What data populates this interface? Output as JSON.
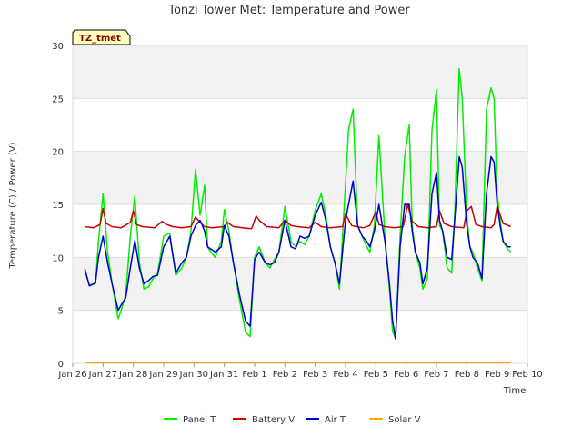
{
  "chart_data": {
    "type": "line",
    "title": "Tonzi Tower Met: Temperature and Power",
    "xlabel": "Time",
    "ylabel": "Temperature (C) / Power (V)",
    "ylim": [
      0,
      30
    ],
    "yticks": [
      0,
      5,
      10,
      15,
      20,
      25,
      30
    ],
    "xlim": [
      0,
      15
    ],
    "xtick_labels": [
      "Jan 26",
      "Jan 27",
      "Jan 28",
      "Jan 29",
      "Jan 30",
      "Jan 31",
      "Feb 1",
      "Feb 2",
      "Feb 3",
      "Feb 4",
      "Feb 5",
      "Feb 6",
      "Feb 7",
      "Feb 8",
      "Feb 9",
      "Feb 10"
    ],
    "badge": "TZ_tmet",
    "legend_position": "bottom-center",
    "series": [
      {
        "name": "Panel T",
        "color": "#00ee00",
        "x": [
          0.4,
          0.55,
          0.75,
          0.85,
          1.0,
          1.15,
          1.3,
          1.5,
          1.6,
          1.75,
          1.9,
          2.05,
          2.2,
          2.35,
          2.5,
          2.65,
          2.8,
          3.0,
          3.2,
          3.4,
          3.6,
          3.75,
          3.9,
          4.05,
          4.2,
          4.35,
          4.45,
          4.55,
          4.7,
          4.9,
          5.0,
          5.15,
          5.3,
          5.5,
          5.7,
          5.85,
          6.0,
          6.15,
          6.35,
          6.5,
          6.65,
          6.8,
          7.0,
          7.2,
          7.35,
          7.5,
          7.65,
          7.8,
          8.0,
          8.2,
          8.35,
          8.5,
          8.65,
          8.8,
          9.0,
          9.1,
          9.25,
          9.4,
          9.55,
          9.7,
          9.8,
          9.95,
          10.1,
          10.3,
          10.45,
          10.55,
          10.65,
          10.8,
          10.95,
          11.1,
          11.2,
          11.3,
          11.45,
          11.55,
          11.7,
          11.85,
          12.0,
          12.1,
          12.2,
          12.35,
          12.5,
          12.6,
          12.75,
          12.85,
          13.0,
          13.1,
          13.2,
          13.35,
          13.5,
          13.65,
          13.8,
          13.9,
          14.0,
          14.1,
          14.2,
          14.35,
          14.45
        ],
        "y": [
          8.8,
          7.4,
          7.5,
          11.5,
          16.0,
          10.5,
          7.5,
          4.2,
          5.0,
          6.5,
          12.0,
          15.8,
          9.5,
          7.0,
          7.2,
          8.0,
          8.5,
          12.0,
          12.3,
          8.3,
          9.0,
          10.0,
          12.5,
          18.3,
          14.0,
          16.8,
          11.0,
          10.5,
          10.0,
          11.5,
          14.5,
          12.5,
          9.5,
          6.0,
          3.0,
          2.5,
          10.0,
          11.0,
          9.5,
          9.0,
          9.8,
          10.5,
          14.8,
          11.5,
          11.0,
          11.5,
          11.2,
          12.0,
          14.5,
          16.0,
          14.0,
          11.0,
          9.5,
          7.0,
          17.0,
          22.0,
          24.0,
          13.0,
          12.0,
          11.0,
          10.5,
          13.0,
          21.5,
          12.0,
          7.0,
          3.0,
          2.3,
          12.0,
          19.5,
          22.5,
          13.0,
          10.5,
          9.0,
          7.0,
          8.0,
          22.0,
          25.8,
          13.0,
          12.5,
          9.0,
          8.5,
          14.0,
          27.8,
          25.0,
          14.0,
          11.0,
          10.5,
          9.0,
          7.8,
          24.0,
          26.0,
          25.0,
          16.0,
          13.5,
          11.5,
          10.8,
          10.5
        ]
      },
      {
        "name": "Battery V",
        "color": "#cc0000",
        "x": [
          0.4,
          0.7,
          0.9,
          1.0,
          1.1,
          1.3,
          1.6,
          1.9,
          2.0,
          2.1,
          2.3,
          2.7,
          2.95,
          3.1,
          3.3,
          3.6,
          3.9,
          4.05,
          4.2,
          4.35,
          4.6,
          5.0,
          5.1,
          5.3,
          5.6,
          5.9,
          6.05,
          6.15,
          6.4,
          6.8,
          7.0,
          7.2,
          7.4,
          7.8,
          8.0,
          8.2,
          8.5,
          8.9,
          9.0,
          9.2,
          9.35,
          9.6,
          9.8,
          10.0,
          10.1,
          10.3,
          10.6,
          10.9,
          11.05,
          11.2,
          11.4,
          11.7,
          12.0,
          12.1,
          12.25,
          12.5,
          12.9,
          13.0,
          13.15,
          13.3,
          13.5,
          13.8,
          13.9,
          14.0,
          14.2,
          14.45
        ],
        "y": [
          12.9,
          12.8,
          13.1,
          14.6,
          13.2,
          12.9,
          12.8,
          13.3,
          14.4,
          13.1,
          12.9,
          12.8,
          13.4,
          13.1,
          12.9,
          12.8,
          12.9,
          13.8,
          13.3,
          12.9,
          12.8,
          12.9,
          13.3,
          12.9,
          12.8,
          12.7,
          13.9,
          13.5,
          12.9,
          12.8,
          13.5,
          13.0,
          12.9,
          12.8,
          13.3,
          12.9,
          12.8,
          12.9,
          14.1,
          13.0,
          12.9,
          12.8,
          13.0,
          14.3,
          13.1,
          12.9,
          12.8,
          12.9,
          15.0,
          13.4,
          12.9,
          12.8,
          12.9,
          14.4,
          13.2,
          12.9,
          12.8,
          14.4,
          14.8,
          13.1,
          12.9,
          12.8,
          13.1,
          14.8,
          13.2,
          12.9
        ]
      },
      {
        "name": "Air T",
        "color": "#0000cc",
        "x": [
          0.4,
          0.55,
          0.75,
          0.85,
          1.0,
          1.15,
          1.3,
          1.5,
          1.6,
          1.75,
          1.9,
          2.05,
          2.2,
          2.35,
          2.5,
          2.65,
          2.8,
          3.0,
          3.2,
          3.4,
          3.6,
          3.75,
          3.9,
          4.05,
          4.2,
          4.35,
          4.45,
          4.55,
          4.7,
          4.9,
          5.0,
          5.15,
          5.3,
          5.5,
          5.7,
          5.85,
          6.0,
          6.15,
          6.35,
          6.5,
          6.65,
          6.8,
          7.0,
          7.2,
          7.35,
          7.5,
          7.65,
          7.8,
          8.0,
          8.2,
          8.35,
          8.5,
          8.65,
          8.8,
          9.0,
          9.1,
          9.25,
          9.4,
          9.55,
          9.7,
          9.8,
          9.95,
          10.1,
          10.3,
          10.45,
          10.55,
          10.65,
          10.8,
          10.95,
          11.1,
          11.2,
          11.3,
          11.45,
          11.55,
          11.7,
          11.85,
          12.0,
          12.1,
          12.2,
          12.35,
          12.5,
          12.6,
          12.75,
          12.85,
          13.0,
          13.1,
          13.2,
          13.35,
          13.5,
          13.65,
          13.8,
          13.9,
          14.0,
          14.1,
          14.2,
          14.35,
          14.45
        ],
        "y": [
          8.9,
          7.3,
          7.6,
          10.0,
          12.0,
          9.5,
          7.5,
          5.0,
          5.5,
          6.2,
          9.0,
          11.6,
          9.0,
          7.5,
          7.8,
          8.2,
          8.3,
          11.0,
          12.0,
          8.5,
          9.5,
          10.0,
          12.0,
          13.0,
          13.5,
          12.5,
          11.0,
          10.8,
          10.5,
          11.0,
          13.0,
          12.0,
          9.5,
          6.5,
          4.0,
          3.5,
          9.8,
          10.5,
          9.5,
          9.3,
          9.5,
          10.5,
          13.5,
          11.0,
          10.8,
          12.0,
          11.8,
          12.0,
          14.0,
          15.2,
          13.5,
          11.0,
          9.5,
          7.5,
          13.5,
          15.0,
          17.2,
          13.0,
          12.0,
          11.5,
          11.0,
          12.5,
          15.0,
          11.5,
          7.5,
          4.0,
          2.3,
          11.0,
          15.0,
          15.0,
          12.5,
          10.5,
          9.5,
          7.5,
          9.0,
          16.0,
          18.0,
          13.5,
          12.5,
          10.0,
          9.8,
          13.5,
          19.5,
          18.5,
          13.0,
          11.0,
          10.0,
          9.5,
          8.0,
          16.0,
          19.5,
          19.0,
          15.0,
          13.0,
          11.5,
          11.0,
          11.0
        ]
      },
      {
        "name": "Solar V",
        "color": "#ffa500",
        "x": [
          0.4,
          14.45
        ],
        "y": [
          0.05,
          0.05
        ]
      }
    ]
  }
}
